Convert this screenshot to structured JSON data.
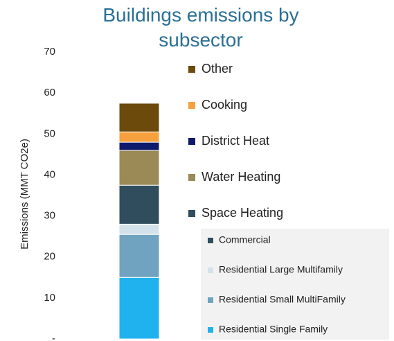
{
  "chart_data": {
    "type": "stacked_bar",
    "title": "Buildings  emissions by subsector",
    "y_label": "Emissions (MMT CO2e)",
    "ylim": [
      0,
      70
    ],
    "yticks": [
      {
        "value": 0,
        "label": "-"
      },
      10,
      20,
      30,
      40,
      50,
      60,
      70
    ],
    "series": [
      {
        "name": "Residential Single Family",
        "color": "#1fb2ee",
        "values": [
          15
        ],
        "subgroup": true
      },
      {
        "name": "Residential Small MultiFamily",
        "color": "#70a3bf",
        "values": [
          10.5
        ],
        "subgroup": true
      },
      {
        "name": "Residential Large Multifamily",
        "color": "#d3e2ea",
        "values": [
          2.5
        ],
        "subgroup": true
      },
      {
        "name": "Commercial",
        "color": "#2f4d5c",
        "values": [
          9.5
        ],
        "subgroup": true
      },
      {
        "name": "Water Heating",
        "color": "#9b8a55",
        "values": [
          8.5
        ]
      },
      {
        "name": "District Heat",
        "color": "#0e1a6c",
        "values": [
          2
        ]
      },
      {
        "name": "Cooking",
        "color": "#f7a03e",
        "values": [
          2.5
        ]
      },
      {
        "name": "Other",
        "color": "#6b4a0b",
        "values": [
          7
        ]
      }
    ],
    "legend_group": {
      "name": "Space Heating",
      "color": "#2f4d5c"
    }
  }
}
